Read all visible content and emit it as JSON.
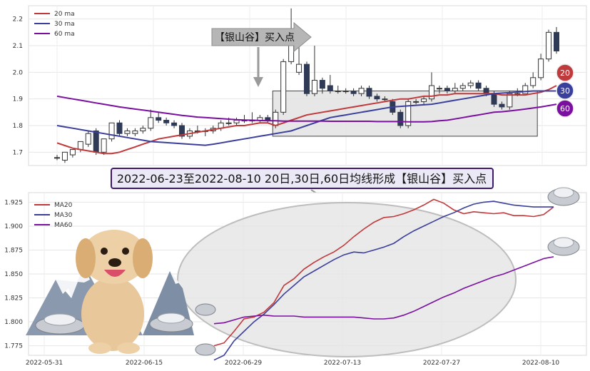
{
  "colors": {
    "ma20": "#c0393b",
    "ma30": "#3b3f9c",
    "ma60": "#7a0fa0",
    "candle_down": "#2f3a56",
    "candle_up_fill": "#ffffff",
    "candle_up_stroke": "#333333",
    "band_fill": "#e3e3e3",
    "banner_fill": "#ece9f6",
    "banner_stroke": "#3d1a6b",
    "badge20": "#c0393b",
    "badge30": "#3b3f9c",
    "badge60": "#7a0fa0"
  },
  "banner": {
    "text": "2022-06-23至2022-08-10 20日,30日,60日均线形成【银山谷】买入点"
  },
  "callout": {
    "text": "【银山谷】买入点"
  },
  "badges": [
    "20",
    "30",
    "60"
  ],
  "chart_data": [
    {
      "type": "candlestick",
      "title": "",
      "legend": [
        "20 ma",
        "30 ma",
        "60 ma"
      ],
      "legend_position": "top-left",
      "grid": true,
      "y_ticks": [
        "1.7",
        "1.8",
        "1.9",
        "2.0",
        "2.1",
        "2.2"
      ],
      "ylim": [
        1.65,
        2.25
      ],
      "candles": [
        [
          1.68,
          1.68,
          1.69,
          1.67
        ],
        [
          1.67,
          1.7,
          1.7,
          1.66
        ],
        [
          1.69,
          1.71,
          1.71,
          1.68
        ],
        [
          1.71,
          1.74,
          1.74,
          1.7
        ],
        [
          1.73,
          1.77,
          1.78,
          1.72
        ],
        [
          1.78,
          1.7,
          1.79,
          1.69
        ],
        [
          1.7,
          1.75,
          1.75,
          1.69
        ],
        [
          1.75,
          1.81,
          1.81,
          1.74
        ],
        [
          1.81,
          1.77,
          1.82,
          1.76
        ],
        [
          1.77,
          1.78,
          1.79,
          1.76
        ],
        [
          1.77,
          1.78,
          1.79,
          1.76
        ],
        [
          1.78,
          1.79,
          1.8,
          1.77
        ],
        [
          1.79,
          1.83,
          1.86,
          1.78
        ],
        [
          1.83,
          1.82,
          1.85,
          1.81
        ],
        [
          1.82,
          1.81,
          1.83,
          1.8
        ],
        [
          1.81,
          1.8,
          1.82,
          1.79
        ],
        [
          1.8,
          1.76,
          1.81,
          1.75
        ],
        [
          1.76,
          1.78,
          1.79,
          1.75
        ],
        [
          1.78,
          1.78,
          1.8,
          1.77
        ],
        [
          1.78,
          1.78,
          1.79,
          1.76
        ],
        [
          1.78,
          1.79,
          1.8,
          1.77
        ],
        [
          1.79,
          1.81,
          1.82,
          1.78
        ],
        [
          1.81,
          1.81,
          1.83,
          1.8
        ],
        [
          1.81,
          1.82,
          1.83,
          1.8
        ],
        [
          1.82,
          1.82,
          1.84,
          1.81
        ],
        [
          1.82,
          1.82,
          1.85,
          1.81
        ],
        [
          1.82,
          1.83,
          1.84,
          1.81
        ],
        [
          1.83,
          1.82,
          1.84,
          1.81
        ],
        [
          1.8,
          1.85,
          1.86,
          1.79
        ],
        [
          1.85,
          2.04,
          2.05,
          1.84
        ],
        [
          2.04,
          2.1,
          2.24,
          2.03
        ],
        [
          2.0,
          2.03,
          2.1,
          1.99
        ],
        [
          2.03,
          1.92,
          2.04,
          1.91
        ],
        [
          1.92,
          1.97,
          2.1,
          1.91
        ],
        [
          1.97,
          1.94,
          1.98,
          1.92
        ],
        [
          1.95,
          1.93,
          1.99,
          1.92
        ],
        [
          1.93,
          1.93,
          1.95,
          1.92
        ],
        [
          1.93,
          1.93,
          1.94,
          1.92
        ],
        [
          1.93,
          1.92,
          1.94,
          1.91
        ],
        [
          1.92,
          1.94,
          1.95,
          1.91
        ],
        [
          1.94,
          1.91,
          1.95,
          1.9
        ],
        [
          1.91,
          1.9,
          1.92,
          1.89
        ],
        [
          1.9,
          1.9,
          1.91,
          1.89
        ],
        [
          1.89,
          1.85,
          1.9,
          1.84
        ],
        [
          1.85,
          1.8,
          1.86,
          1.79
        ],
        [
          1.8,
          1.89,
          1.9,
          1.79
        ],
        [
          1.89,
          1.89,
          1.9,
          1.88
        ],
        [
          1.89,
          1.9,
          1.91,
          1.88
        ],
        [
          1.9,
          1.95,
          2.0,
          1.89
        ],
        [
          1.94,
          1.94,
          1.95,
          1.92
        ],
        [
          1.94,
          1.93,
          1.95,
          1.92
        ],
        [
          1.93,
          1.94,
          1.96,
          1.92
        ],
        [
          1.94,
          1.95,
          1.96,
          1.93
        ],
        [
          1.95,
          1.96,
          1.97,
          1.94
        ],
        [
          1.96,
          1.94,
          1.97,
          1.93
        ],
        [
          1.94,
          1.92,
          1.95,
          1.91
        ],
        [
          1.92,
          1.88,
          1.93,
          1.87
        ],
        [
          1.88,
          1.87,
          1.89,
          1.86
        ],
        [
          1.87,
          1.92,
          1.93,
          1.86
        ],
        [
          1.92,
          1.92,
          1.94,
          1.91
        ],
        [
          1.92,
          1.95,
          1.96,
          1.92
        ],
        [
          1.95,
          1.98,
          2.0,
          1.94
        ],
        [
          1.98,
          2.05,
          2.07,
          1.97
        ],
        [
          2.05,
          2.15,
          2.16,
          2.04
        ],
        [
          2.15,
          2.08,
          2.17,
          2.07
        ]
      ],
      "series": [
        {
          "name": "20 ma",
          "values": [
            1.735,
            1.725,
            1.715,
            1.71,
            1.705,
            1.7,
            1.695,
            1.695,
            1.7,
            1.71,
            1.72,
            1.73,
            1.74,
            1.75,
            1.755,
            1.76,
            1.765,
            1.77,
            1.775,
            1.78,
            1.785,
            1.79,
            1.795,
            1.8,
            1.8,
            1.805,
            1.81,
            1.81,
            1.8,
            1.81,
            1.82,
            1.83,
            1.84,
            1.845,
            1.85,
            1.855,
            1.86,
            1.865,
            1.87,
            1.875,
            1.88,
            1.885,
            1.89,
            1.895,
            1.9,
            1.9,
            1.905,
            1.91,
            1.91,
            1.915,
            1.915,
            1.92,
            1.92,
            1.92,
            1.92,
            1.92,
            1.92,
            1.915,
            1.915,
            1.915,
            1.915,
            1.92,
            1.925,
            1.935,
            1.95
          ]
        },
        {
          "name": "30 ma",
          "values": [
            1.8,
            1.795,
            1.79,
            1.785,
            1.78,
            1.775,
            1.77,
            1.765,
            1.76,
            1.755,
            1.75,
            1.745,
            1.74,
            1.738,
            1.736,
            1.734,
            1.732,
            1.73,
            1.728,
            1.726,
            1.73,
            1.735,
            1.74,
            1.745,
            1.75,
            1.755,
            1.76,
            1.765,
            1.77,
            1.775,
            1.78,
            1.79,
            1.8,
            1.81,
            1.82,
            1.83,
            1.835,
            1.84,
            1.845,
            1.85,
            1.855,
            1.86,
            1.865,
            1.87,
            1.872,
            1.874,
            1.876,
            1.878,
            1.88,
            1.885,
            1.89,
            1.895,
            1.9,
            1.905,
            1.91,
            1.915,
            1.92,
            1.922,
            1.924,
            1.926,
            1.928,
            1.93,
            1.93,
            1.93,
            1.93
          ]
        },
        {
          "name": "60 ma",
          "values": [
            1.91,
            1.905,
            1.9,
            1.895,
            1.89,
            1.885,
            1.88,
            1.875,
            1.87,
            1.866,
            1.862,
            1.858,
            1.854,
            1.85,
            1.846,
            1.842,
            1.838,
            1.835,
            1.832,
            1.83,
            1.828,
            1.826,
            1.824,
            1.822,
            1.821,
            1.82,
            1.819,
            1.818,
            1.818,
            1.817,
            1.817,
            1.817,
            1.817,
            1.817,
            1.817,
            1.816,
            1.816,
            1.816,
            1.816,
            1.816,
            1.816,
            1.815,
            1.815,
            1.815,
            1.815,
            1.814,
            1.814,
            1.814,
            1.815,
            1.818,
            1.82,
            1.825,
            1.83,
            1.835,
            1.84,
            1.845,
            1.85,
            1.852,
            1.855,
            1.858,
            1.862,
            1.866,
            1.87,
            1.875,
            1.88
          ]
        }
      ]
    },
    {
      "type": "line",
      "title": "",
      "legend": [
        "MA20",
        "MA30",
        "MA60"
      ],
      "legend_position": "top-left",
      "grid": true,
      "x_ticks": [
        "2022-05-31",
        "2022-06-15",
        "2022-06-29",
        "2022-07-13",
        "2022-07-27",
        "2022-08-10"
      ],
      "y_ticks": [
        "1.775",
        "1.800",
        "1.825",
        "1.850",
        "1.875",
        "1.900",
        "1.925"
      ],
      "ylim": [
        1.765,
        1.935
      ],
      "series": [
        {
          "name": "MA20",
          "values": [
            1.775,
            1.778,
            1.79,
            1.803,
            1.805,
            1.81,
            1.82,
            1.838,
            1.845,
            1.855,
            1.862,
            1.868,
            1.873,
            1.88,
            1.889,
            1.897,
            1.904,
            1.909,
            1.91,
            1.913,
            1.917,
            1.922,
            1.928,
            1.924,
            1.917,
            1.913,
            1.915,
            1.914,
            1.913,
            1.914,
            1.911,
            1.911,
            1.91,
            1.912,
            1.92
          ]
        },
        {
          "name": "MA30",
          "values": [
            1.76,
            1.765,
            1.78,
            1.79,
            1.8,
            1.808,
            1.818,
            1.829,
            1.838,
            1.847,
            1.853,
            1.859,
            1.865,
            1.87,
            1.873,
            1.872,
            1.875,
            1.878,
            1.882,
            1.889,
            1.895,
            1.9,
            1.905,
            1.91,
            1.914,
            1.919,
            1.923,
            1.925,
            1.926,
            1.924,
            1.922,
            1.921,
            1.92,
            1.92,
            1.92
          ]
        },
        {
          "name": "MA60",
          "values": [
            1.798,
            1.799,
            1.802,
            1.805,
            1.806,
            1.807,
            1.806,
            1.806,
            1.806,
            1.805,
            1.805,
            1.805,
            1.805,
            1.805,
            1.805,
            1.804,
            1.803,
            1.803,
            1.804,
            1.807,
            1.811,
            1.816,
            1.821,
            1.826,
            1.83,
            1.835,
            1.839,
            1.843,
            1.847,
            1.85,
            1.854,
            1.858,
            1.862,
            1.866,
            1.868
          ]
        }
      ]
    }
  ]
}
